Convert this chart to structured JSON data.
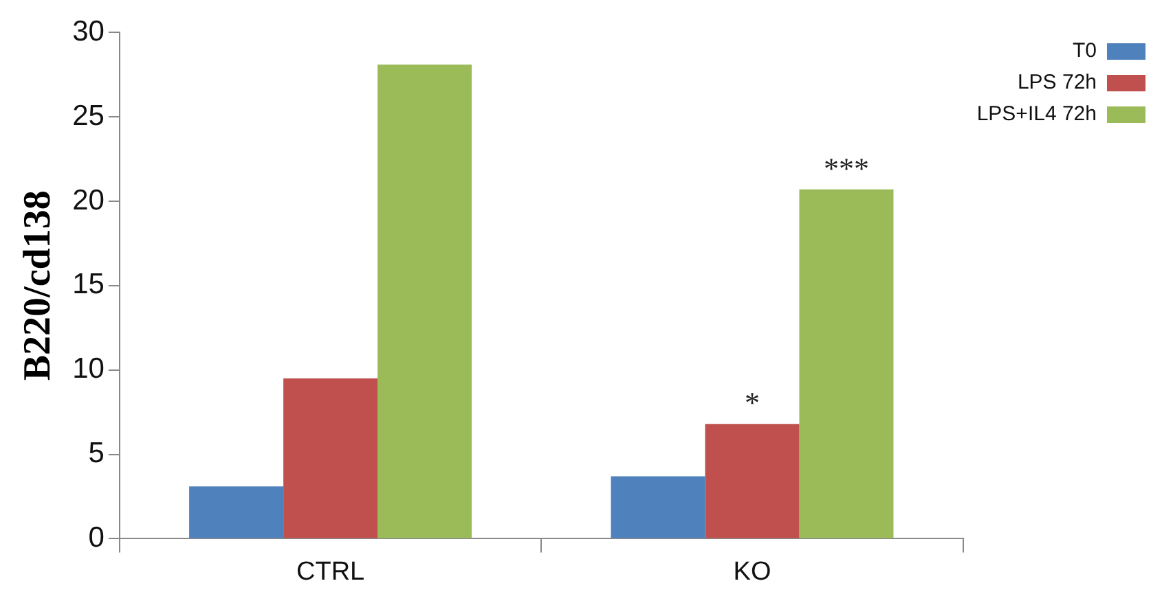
{
  "chart_data": {
    "type": "bar",
    "ylabel": "B220/cd138",
    "categories": [
      "CTRL",
      "KO"
    ],
    "series": [
      {
        "name": "T0",
        "color": "#4f81bd",
        "values": [
          3.1,
          3.7
        ]
      },
      {
        "name": "LPS 72h",
        "color": "#c0504d",
        "values": [
          9.5,
          6.8
        ]
      },
      {
        "name": "LPS+IL4 72h",
        "color": "#9bbb59",
        "values": [
          28.1,
          20.7
        ]
      }
    ],
    "ylim": [
      0,
      30
    ],
    "yticks": [
      0,
      5,
      10,
      15,
      20,
      25,
      30
    ],
    "grid": false,
    "legend": "top right",
    "annotations": [
      {
        "text": "*",
        "x": "KO",
        "y": 6.8
      },
      "***"
    ]
  }
}
